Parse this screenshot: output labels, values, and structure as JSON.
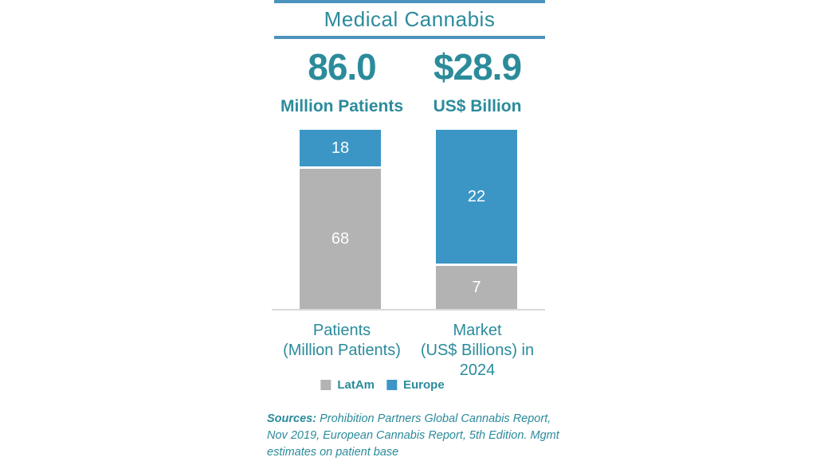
{
  "title": "Medical Cannabis",
  "headline_stats": {
    "patients": {
      "value": "86.0",
      "unit": "Million Patients"
    },
    "market": {
      "value": "$28.9",
      "unit": "US$ Billion"
    }
  },
  "chart_data": {
    "type": "bar",
    "stacked": true,
    "title": "Medical Cannabis",
    "categories": [
      "Patients\n(Million Patients)",
      "Market\n(US$ Billions) in\n2024"
    ],
    "series": [
      {
        "name": "LatAm",
        "color": "#b3b3b3",
        "values": [
          68,
          7
        ]
      },
      {
        "name": "Europe",
        "color": "#3c96c5",
        "values": [
          18,
          22
        ]
      }
    ],
    "totals": [
      86.0,
      28.9
    ],
    "totals_display": [
      "86.0 Million Patients",
      "$28.9 US$ Billion"
    ],
    "legend_position": "bottom",
    "grid": false
  },
  "sources": {
    "label": "Sources:",
    "line1_rest": " Prohibition Partners Global Cannabis Report,",
    "line2": "Nov 2019, European Cannabis Report, 5th Edition. Mgmt",
    "line3": "estimates on patient base"
  },
  "colors": {
    "teal_text": "#2b8b9b",
    "rule_blue": "#4d93bd",
    "latam_gray": "#b3b3b3",
    "europe_blue": "#3c96c5",
    "baseline_gray": "#d9d9d9"
  }
}
